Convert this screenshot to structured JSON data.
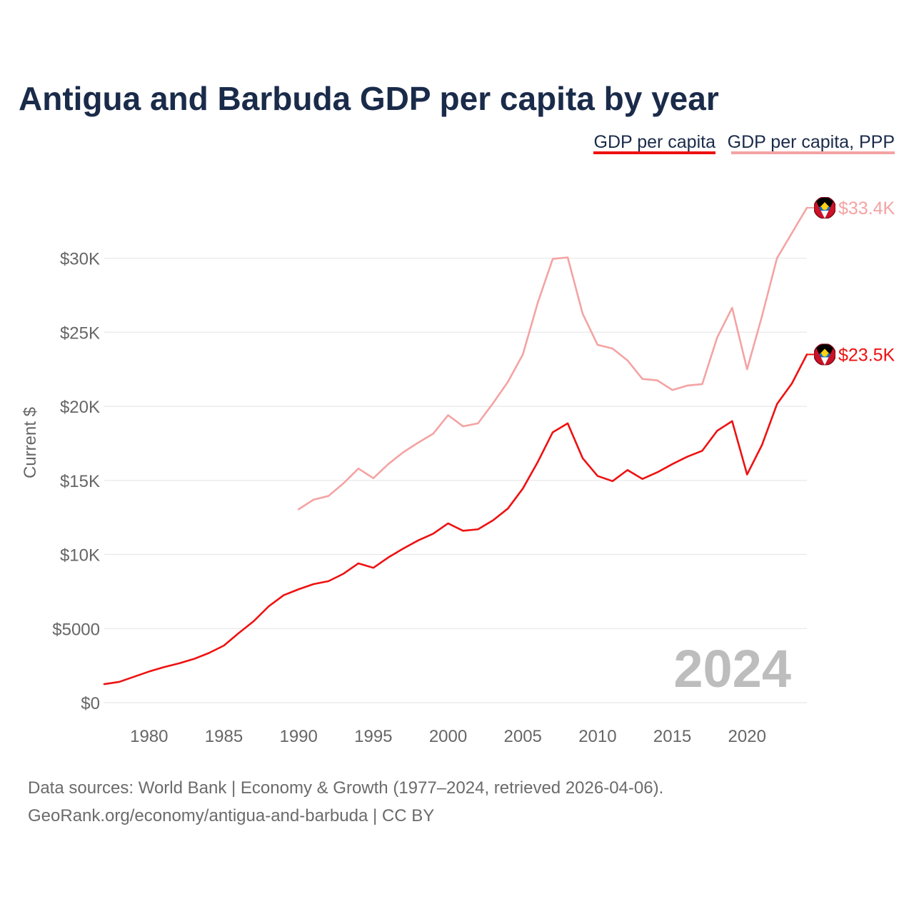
{
  "chart_data": {
    "type": "line",
    "title": "Antigua and Barbuda GDP per capita by year",
    "ylabel": "Current $",
    "xlabel": "",
    "xlim": [
      1977,
      2024
    ],
    "ylim": [
      0,
      33400
    ],
    "x_ticks": [
      1980,
      1985,
      1990,
      1995,
      2000,
      2005,
      2010,
      2015,
      2020
    ],
    "x_tick_labels": [
      "1980",
      "1985",
      "1990",
      "1995",
      "2000",
      "2005",
      "2010",
      "2015",
      "2020"
    ],
    "y_ticks": [
      0,
      5000,
      10000,
      15000,
      20000,
      25000,
      30000
    ],
    "y_tick_labels": [
      "$0",
      "$5000",
      "$10K",
      "$15K",
      "$20K",
      "$25K",
      "$30K"
    ],
    "grid": true,
    "legend_position": "top-right",
    "overlay_year": "2024",
    "series": [
      {
        "name": "GDP per capita",
        "color": "#ee1111",
        "end_label": "$23.5K",
        "x": [
          1977,
          1978,
          1979,
          1980,
          1981,
          1982,
          1983,
          1984,
          1985,
          1986,
          1987,
          1988,
          1989,
          1990,
          1991,
          1992,
          1993,
          1994,
          1995,
          1996,
          1997,
          1998,
          1999,
          2000,
          2001,
          2002,
          2003,
          2004,
          2005,
          2006,
          2007,
          2008,
          2009,
          2010,
          2011,
          2012,
          2013,
          2014,
          2015,
          2016,
          2017,
          2018,
          2019,
          2020,
          2021,
          2022,
          2023,
          2024
        ],
        "values": [
          1250,
          1400,
          1750,
          2100,
          2400,
          2650,
          2950,
          3350,
          3850,
          4700,
          5500,
          6500,
          7250,
          7650,
          8000,
          8200,
          8700,
          9400,
          9100,
          9800,
          10400,
          10950,
          11400,
          12100,
          11600,
          11700,
          12300,
          13100,
          14450,
          16250,
          18250,
          18850,
          16500,
          15300,
          14950,
          15700,
          15100,
          15550,
          16100,
          16600,
          17000,
          18350,
          19000,
          15400,
          17400,
          20150,
          21550,
          23500
        ]
      },
      {
        "name": "GDP per capita, PPP",
        "color": "#f4a3a3",
        "end_label": "$33.4K",
        "x": [
          1990,
          1991,
          1992,
          1993,
          1994,
          1995,
          1996,
          1997,
          1998,
          1999,
          2000,
          2001,
          2002,
          2003,
          2004,
          2005,
          2006,
          2007,
          2008,
          2009,
          2010,
          2011,
          2012,
          2013,
          2014,
          2015,
          2016,
          2017,
          2018,
          2019,
          2020,
          2021,
          2022,
          2023,
          2024
        ],
        "values": [
          13050,
          13700,
          13950,
          14800,
          15800,
          15150,
          16100,
          16900,
          17550,
          18150,
          19400,
          18650,
          18850,
          20200,
          21650,
          23500,
          27000,
          29950,
          30050,
          26250,
          24150,
          23900,
          23100,
          21850,
          21750,
          21100,
          21400,
          21500,
          24650,
          26650,
          22500,
          26100,
          30000,
          31700,
          33400
        ]
      }
    ]
  },
  "footer": {
    "line1": "Data sources: World Bank | Economy & Growth (1977–2024, retrieved 2026-04-06).",
    "line2": "GeoRank.org/economy/antigua-and-barbuda | CC BY"
  },
  "flag_icon": "antigua-and-barbuda-flag-icon"
}
